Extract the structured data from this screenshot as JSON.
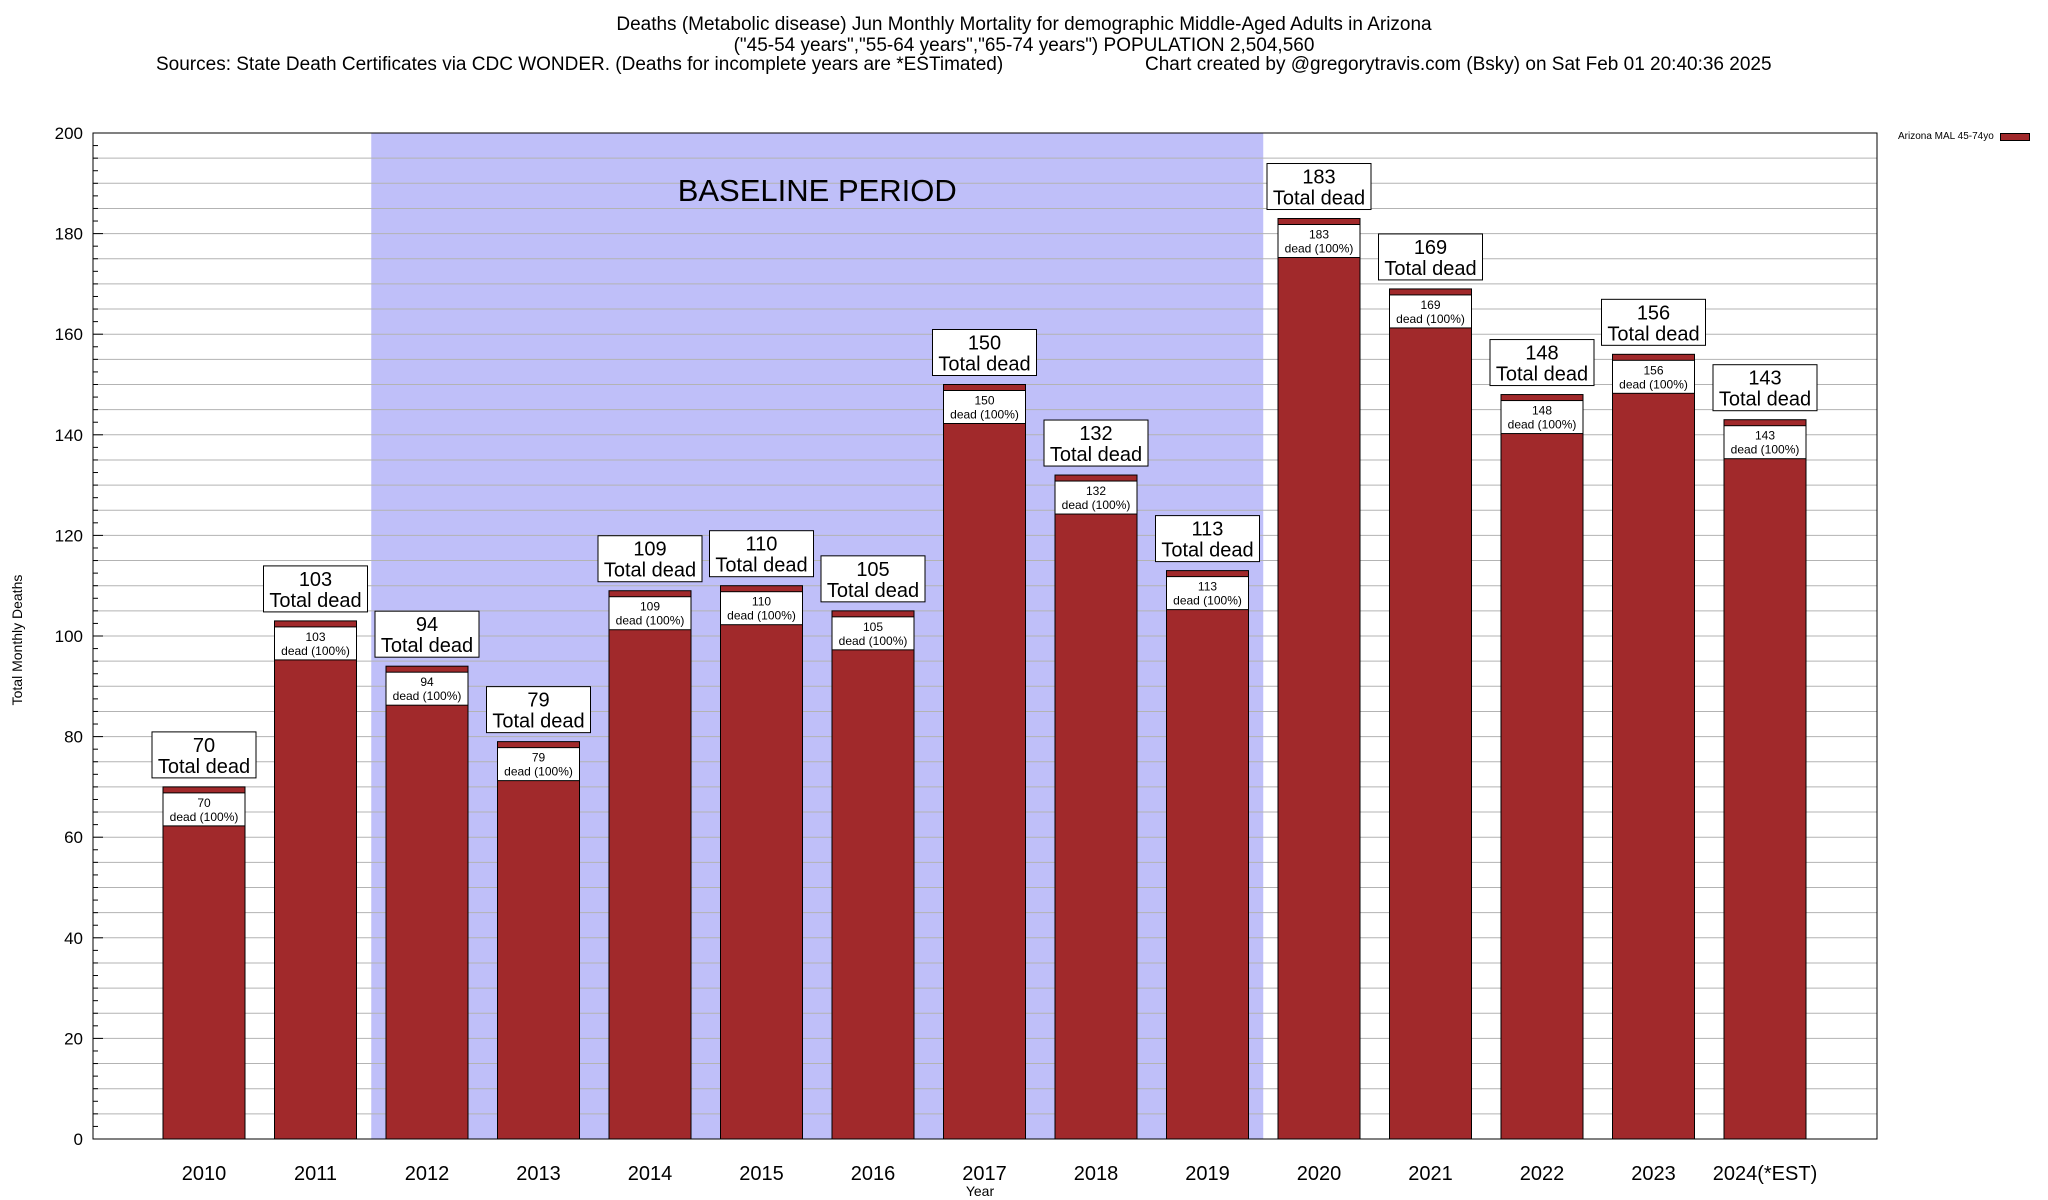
{
  "chart_data": {
    "type": "bar",
    "title_lines": [
      "Deaths (Metabolic disease) Jun Monthly Mortality for demographic Middle-Aged Adults in Arizona",
      "(\"45-54 years\",\"55-64 years\",\"65-74 years\") POPULATION 2,504,560"
    ],
    "source_text": "Sources: State Death Certificates via CDC WONDER. (Deaths for incomplete years are *ESTimated)",
    "credit_text": "Chart created by @gregorytravis.com (Bsky) on Sat Feb 01 20:40:36 2025",
    "xlabel": "Year",
    "ylabel": "Total Monthly Deaths",
    "ylim": [
      0,
      200
    ],
    "y_ticks": [
      0,
      20,
      40,
      60,
      80,
      100,
      120,
      140,
      160,
      180,
      200
    ],
    "categories": [
      "2010",
      "2011",
      "2012",
      "2013",
      "2014",
      "2015",
      "2016",
      "2017",
      "2018",
      "2019",
      "2020",
      "2021",
      "2022",
      "2023",
      "2024(*EST)"
    ],
    "series": [
      {
        "name": "Arizona MAL 45-74yo",
        "values": [
          70,
          103,
          94,
          79,
          109,
          110,
          105,
          150,
          132,
          113,
          183,
          169,
          148,
          156,
          143
        ]
      }
    ],
    "total_label": "Total dead",
    "inner_label": "dead (100%)",
    "baseline": {
      "label": "BASELINE PERIOD",
      "from": "2012",
      "to": "2019"
    },
    "legend_position": "top-right",
    "grid": true,
    "colors": {
      "bar": "#a1292b",
      "baseline": "#bfbff9"
    }
  }
}
